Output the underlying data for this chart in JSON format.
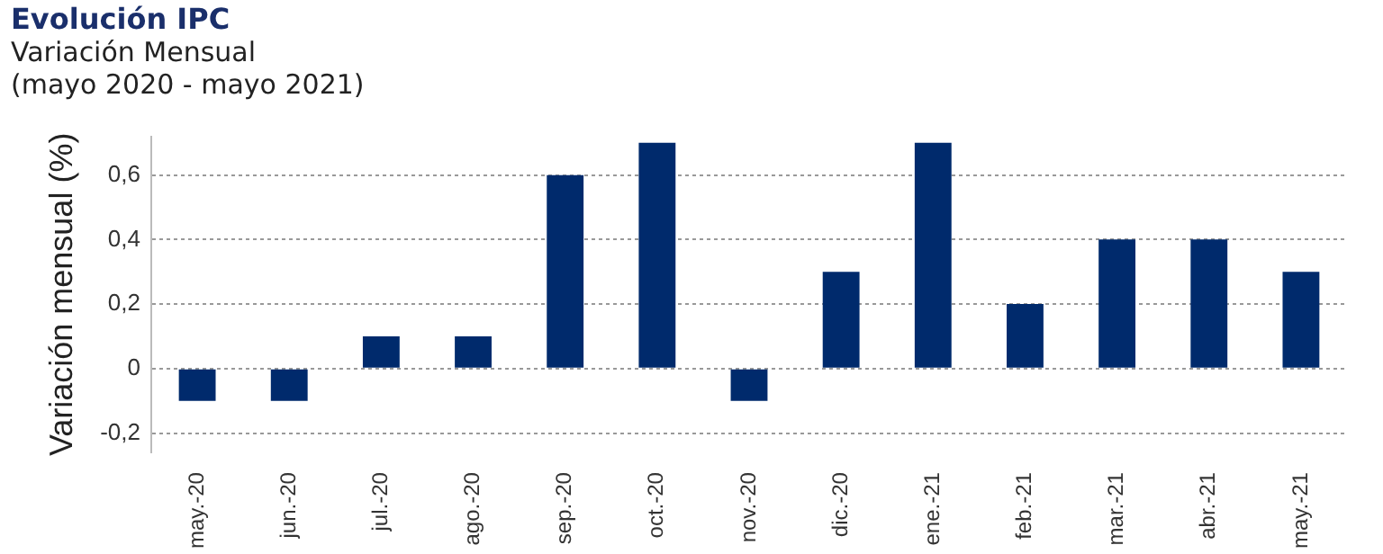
{
  "chart_data": {
    "type": "bar",
    "title": "Evolución IPC",
    "subtitle": "Variación Mensual",
    "annotations": [
      "(mayo 2020 - mayo 2021)"
    ],
    "ylabel": "Variación mensual (%)",
    "categories": [
      "may.-20",
      "jun.-20",
      "jul.-20",
      "ago.-20",
      "sep.-20",
      "oct.-20",
      "nov.-20",
      "dic.-20",
      "ene.-21",
      "feb.-21",
      "mar.-21",
      "abr.-21",
      "may.-21"
    ],
    "values": [
      -0.1,
      -0.1,
      0.1,
      0.1,
      0.6,
      0.7,
      -0.1,
      0.3,
      0.7,
      0.2,
      0.4,
      0.4,
      0.3
    ],
    "color": "#002a6c",
    "ylim": [
      -0.26,
      0.72
    ],
    "yticks": [
      {
        "value": -0.2,
        "label": "-0,2"
      },
      0,
      {
        "value": 0.2,
        "label": "0,2"
      },
      {
        "value": 0.4,
        "label": "0,4"
      },
      {
        "value": 0.6,
        "label": "0,6"
      }
    ],
    "grid": "y",
    "legend": false
  }
}
